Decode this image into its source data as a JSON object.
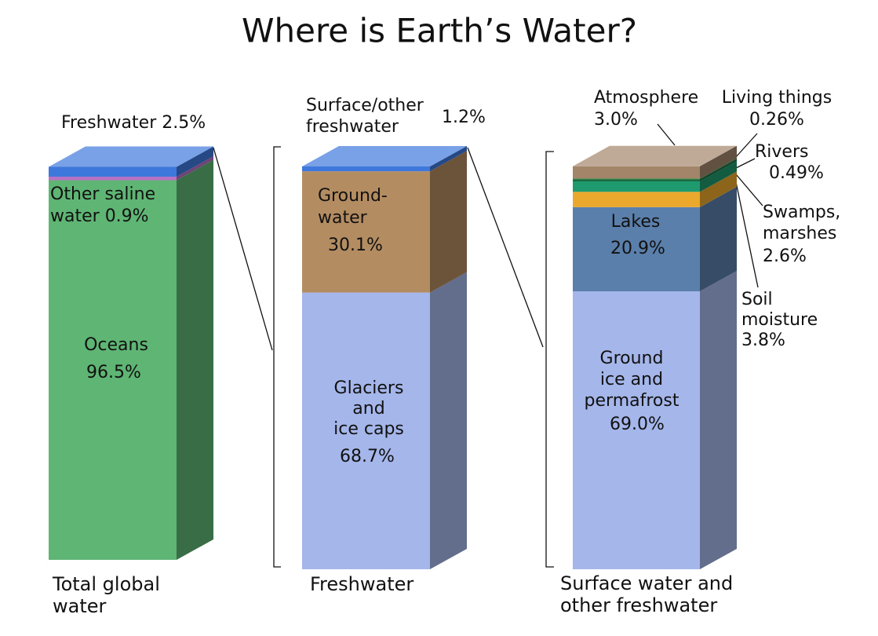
{
  "chart_data": {
    "type": "stacked-column-3d",
    "title": "Where is Earth’s Water?",
    "bars": [
      {
        "label": [
          "Total global",
          "water"
        ],
        "segments": [
          {
            "name": [
              "Oceans"
            ],
            "value": 96.5,
            "value_label": "96.5%",
            "color": "#5fb573"
          },
          {
            "name": [
              "Other saline",
              "water"
            ],
            "value": 0.9,
            "value_label": "0.9%",
            "color": "#b872c4"
          },
          {
            "name": [
              "Freshwater"
            ],
            "value": 2.5,
            "value_label": "2.5%",
            "color": "#3f78dc"
          }
        ]
      },
      {
        "label": [
          "Freshwater"
        ],
        "segments": [
          {
            "name": [
              "Glaciers",
              "and",
              "ice caps"
            ],
            "value": 68.7,
            "value_label": "68.7%",
            "color": "#a5b6ea"
          },
          {
            "name": [
              "Ground-",
              "water"
            ],
            "value": 30.1,
            "value_label": "30.1%",
            "color": "#b48c62"
          },
          {
            "name": [
              "Surface/other",
              "freshwater"
            ],
            "value": 1.2,
            "value_label": "1.2%",
            "color": "#3f78dc"
          }
        ]
      },
      {
        "label": [
          "Surface water and",
          "other freshwater"
        ],
        "segments": [
          {
            "name": [
              "Ground",
              "ice and",
              "permafrost"
            ],
            "value": 69.0,
            "value_label": "69.0%",
            "color": "#a5b6ea"
          },
          {
            "name": [
              "Lakes"
            ],
            "value": 20.9,
            "value_label": "20.9%",
            "color": "#5a7fab"
          },
          {
            "name": [
              "Soil",
              "moisture"
            ],
            "value": 3.8,
            "value_label": "3.8%",
            "color": "#eaa82c"
          },
          {
            "name": [
              "Swamps,",
              "marshes"
            ],
            "value": 2.6,
            "value_label": "2.6%",
            "color": "#1f9a6e"
          },
          {
            "name": [
              "Rivers"
            ],
            "value": 0.49,
            "value_label": "0.49%",
            "color": "#17693f"
          },
          {
            "name": [
              "Living things"
            ],
            "value": 0.26,
            "value_label": "0.26%",
            "color": "#4b8a4a"
          },
          {
            "name": [
              "Atmosphere"
            ],
            "value": 3.0,
            "value_label": "3.0%",
            "color": "#a3856a"
          }
        ]
      }
    ]
  }
}
